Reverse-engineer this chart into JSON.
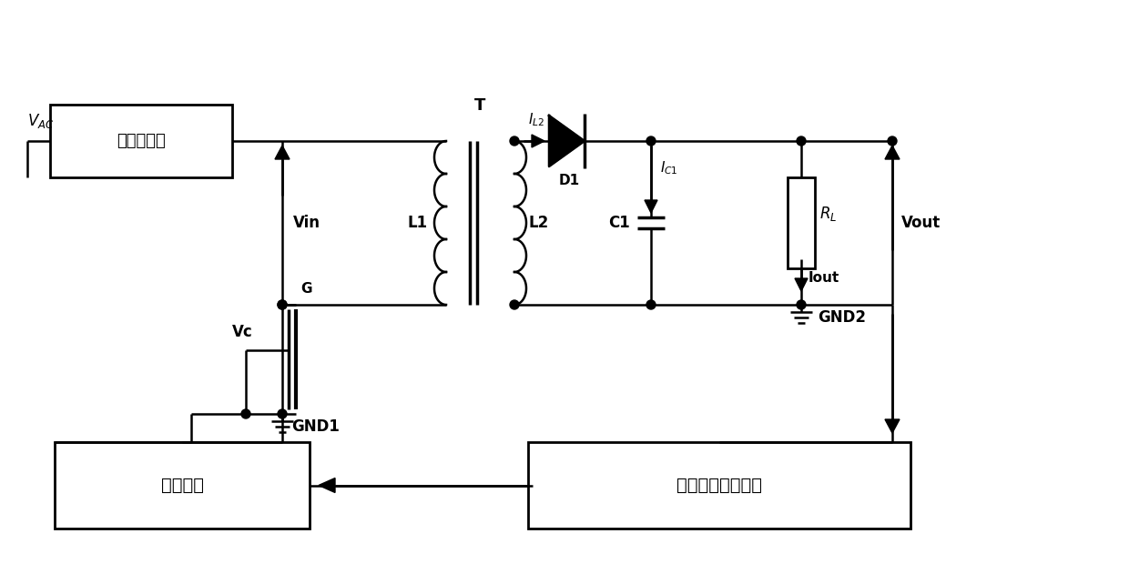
{
  "bg_color": "#ffffff",
  "line_color": "#000000",
  "lw": 1.8,
  "box1_label": "整流、滤波",
  "box2_label": "控制电路",
  "box3_label": "电压纹波检测电路",
  "font_cn": 12
}
